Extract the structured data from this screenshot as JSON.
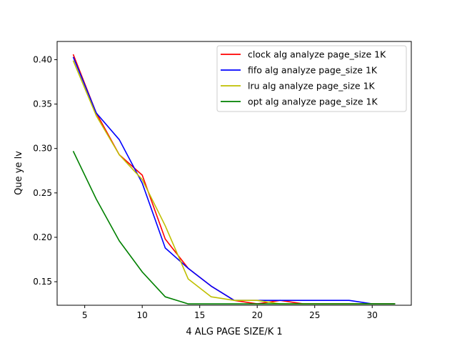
{
  "chart_data": {
    "type": "line",
    "title": "",
    "xlabel": "4 ALG PAGE SIZE/K 1",
    "ylabel": "Que ye lv",
    "xlim": [
      2.6,
      33.4
    ],
    "ylim": [
      0.1235,
      0.4205
    ],
    "xticks": [
      5,
      10,
      15,
      20,
      25,
      30
    ],
    "yticks": [
      0.15,
      0.2,
      0.25,
      0.3,
      0.35,
      0.4
    ],
    "grid": false,
    "legend_position": "top-right",
    "series": [
      {
        "name": "clock alg analyze page_size 1K",
        "color": "#ff0000",
        "x": [
          4,
          6,
          8,
          10,
          12,
          14,
          16,
          18,
          20,
          22,
          24,
          26,
          28,
          30,
          32
        ],
        "y": [
          0.406,
          0.34,
          0.293,
          0.27,
          0.198,
          0.165,
          0.145,
          0.129,
          0.125,
          0.129,
          0.125,
          0.125,
          0.125,
          0.125,
          0.125
        ]
      },
      {
        "name": "fifo alg analyze page_size 1K",
        "color": "#0000ff",
        "x": [
          4,
          6,
          8,
          10,
          12,
          14,
          16,
          18,
          20,
          22,
          24,
          26,
          28,
          30,
          32
        ],
        "y": [
          0.403,
          0.34,
          0.31,
          0.261,
          0.188,
          0.165,
          0.145,
          0.129,
          0.129,
          0.129,
          0.129,
          0.129,
          0.129,
          0.125,
          0.125
        ]
      },
      {
        "name": "lru alg analyze page_size 1K",
        "color": "#bfbf00",
        "x": [
          4,
          6,
          8,
          10,
          12,
          14,
          16,
          18,
          20,
          22,
          24,
          26,
          28,
          30,
          32
        ],
        "y": [
          0.399,
          0.337,
          0.293,
          0.265,
          0.213,
          0.153,
          0.133,
          0.129,
          0.129,
          0.125,
          0.125,
          0.125,
          0.125,
          0.125,
          0.125
        ]
      },
      {
        "name": "opt alg analyze page_size 1K",
        "color": "#008000",
        "x": [
          4,
          6,
          8,
          10,
          12,
          14,
          16,
          18,
          20,
          22,
          24,
          26,
          28,
          30,
          32
        ],
        "y": [
          0.297,
          0.243,
          0.196,
          0.161,
          0.133,
          0.125,
          0.125,
          0.125,
          0.125,
          0.125,
          0.125,
          0.125,
          0.125,
          0.125,
          0.125
        ]
      }
    ]
  }
}
